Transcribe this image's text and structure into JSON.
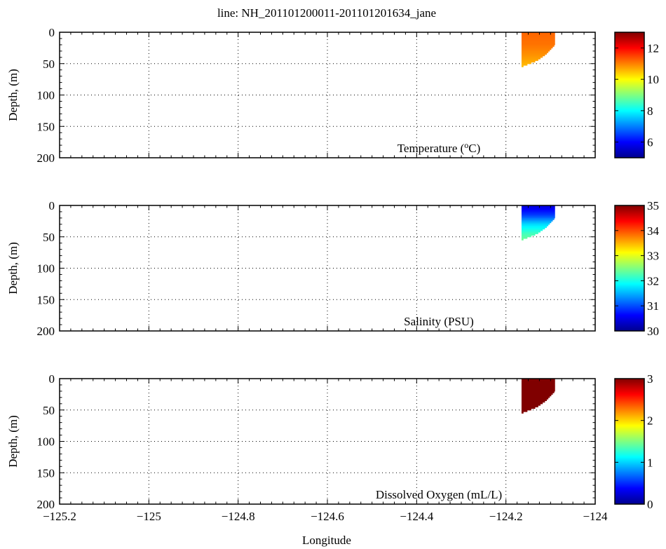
{
  "figure": {
    "title": "line: NH_201101200011-201101201634_jane",
    "xlabel": "Longitude"
  },
  "colormap": [
    "#00008f",
    "#0000ff",
    "#0080ff",
    "#00ffff",
    "#80ff80",
    "#ffff00",
    "#ff8000",
    "#ff0000",
    "#800000"
  ],
  "chart_data": [
    {
      "type": "scatter",
      "panel": "temperature",
      "annotation": "Temperature (°C)",
      "annotation_main": "Temperature (",
      "annotation_unit_sup": "o",
      "annotation_unit": "C)",
      "ylabel": "Depth, (m)",
      "xlim": [
        -125.2,
        -124.0
      ],
      "ylim": [
        0,
        200
      ],
      "y_inverted": true,
      "x_ticks": [
        -125.2,
        -125,
        -124.8,
        -124.6,
        -124.4,
        -124.2,
        -124
      ],
      "y_ticks": [
        0,
        50,
        100,
        150,
        200
      ],
      "colorbar": {
        "range": [
          5,
          13
        ],
        "ticks": [
          6,
          8,
          10,
          12
        ]
      },
      "patch": {
        "lon_min": -124.165,
        "lon_max": -124.09,
        "lon_at_depth": [
          [
            0,
            -124.09
          ],
          [
            20,
            -124.09
          ],
          [
            35,
            -124.11
          ],
          [
            45,
            -124.13
          ],
          [
            55,
            -124.165
          ]
        ],
        "depth_min": 0,
        "depth_max": 55,
        "values_by_depth": [
          [
            0,
            11.2
          ],
          [
            20,
            11.1
          ],
          [
            40,
            10.8
          ],
          [
            55,
            10.5
          ]
        ]
      }
    },
    {
      "type": "scatter",
      "panel": "salinity",
      "annotation": "Salinity (PSU)",
      "ylabel": "Depth, (m)",
      "xlim": [
        -125.2,
        -124.0
      ],
      "ylim": [
        0,
        200
      ],
      "y_inverted": true,
      "x_ticks": [
        -125.2,
        -125,
        -124.8,
        -124.6,
        -124.4,
        -124.2,
        -124
      ],
      "y_ticks": [
        0,
        50,
        100,
        150,
        200
      ],
      "colorbar": {
        "range": [
          30,
          35
        ],
        "ticks": [
          30,
          31,
          32,
          33,
          34,
          35
        ]
      },
      "patch": {
        "lon_min": -124.165,
        "lon_max": -124.09,
        "lon_at_depth": [
          [
            0,
            -124.09
          ],
          [
            20,
            -124.09
          ],
          [
            35,
            -124.11
          ],
          [
            45,
            -124.13
          ],
          [
            55,
            -124.165
          ]
        ],
        "depth_min": 0,
        "depth_max": 55,
        "values_by_depth": [
          [
            0,
            30.4
          ],
          [
            15,
            30.9
          ],
          [
            30,
            31.7
          ],
          [
            45,
            32.2
          ],
          [
            55,
            32.4
          ]
        ]
      }
    },
    {
      "type": "scatter",
      "panel": "oxygen",
      "annotation": "Dissolved Oxygen (mL/L)",
      "ylabel": "Depth, (m)",
      "xlim": [
        -125.2,
        -124.0
      ],
      "ylim": [
        0,
        200
      ],
      "y_inverted": true,
      "x_ticks": [
        -125.2,
        -125,
        -124.8,
        -124.6,
        -124.4,
        -124.2,
        -124
      ],
      "y_ticks": [
        0,
        50,
        100,
        150,
        200
      ],
      "colorbar": {
        "range": [
          0,
          3
        ],
        "ticks": [
          0,
          1,
          2,
          3
        ]
      },
      "patch": {
        "lon_min": -124.165,
        "lon_max": -124.09,
        "lon_at_depth": [
          [
            0,
            -124.09
          ],
          [
            20,
            -124.09
          ],
          [
            35,
            -124.11
          ],
          [
            45,
            -124.13
          ],
          [
            55,
            -124.165
          ]
        ],
        "depth_min": 0,
        "depth_max": 55,
        "values_by_depth": [
          [
            0,
            5.5
          ],
          [
            55,
            5.0
          ]
        ]
      }
    }
  ]
}
